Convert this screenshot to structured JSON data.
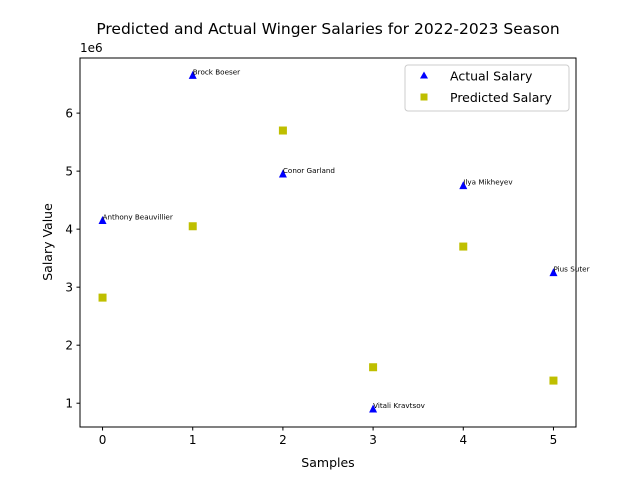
{
  "chart_data": {
    "type": "scatter",
    "title": "Predicted and Actual Winger Salaries for 2022-2023 Season",
    "xlabel": "Samples",
    "ylabel": "Salary Value",
    "y_offset_label": "1e6",
    "xlim": [
      -0.25,
      5.25
    ],
    "ylim": [
      590000,
      6950000
    ],
    "x_ticks": [
      0,
      1,
      2,
      3,
      4,
      5
    ],
    "x_tick_labels": [
      "0",
      "1",
      "2",
      "3",
      "4",
      "5"
    ],
    "y_ticks": [
      1000000,
      2000000,
      3000000,
      4000000,
      5000000,
      6000000
    ],
    "y_tick_labels": [
      "1",
      "2",
      "3",
      "4",
      "5",
      "6"
    ],
    "grid": false,
    "legend_position": "top-right",
    "series": [
      {
        "name": "Actual Salary",
        "marker": "triangle",
        "color": "#0000ff",
        "x": [
          0,
          1,
          2,
          3,
          4,
          5
        ],
        "values": [
          4150000,
          6650000,
          4950000,
          900000,
          4750000,
          3250000
        ],
        "point_labels": [
          "Anthony Beauvillier",
          "Brock Boeser",
          "Conor Garland",
          "Vitali Kravtsov",
          "Ilya Mikheyev",
          "Pius Suter"
        ]
      },
      {
        "name": "Predicted Salary",
        "marker": "square",
        "color": "#bfbf00",
        "x": [
          0,
          1,
          2,
          3,
          4,
          5
        ],
        "values": [
          2820000,
          4050000,
          5700000,
          1620000,
          3700000,
          1390000
        ]
      }
    ]
  }
}
